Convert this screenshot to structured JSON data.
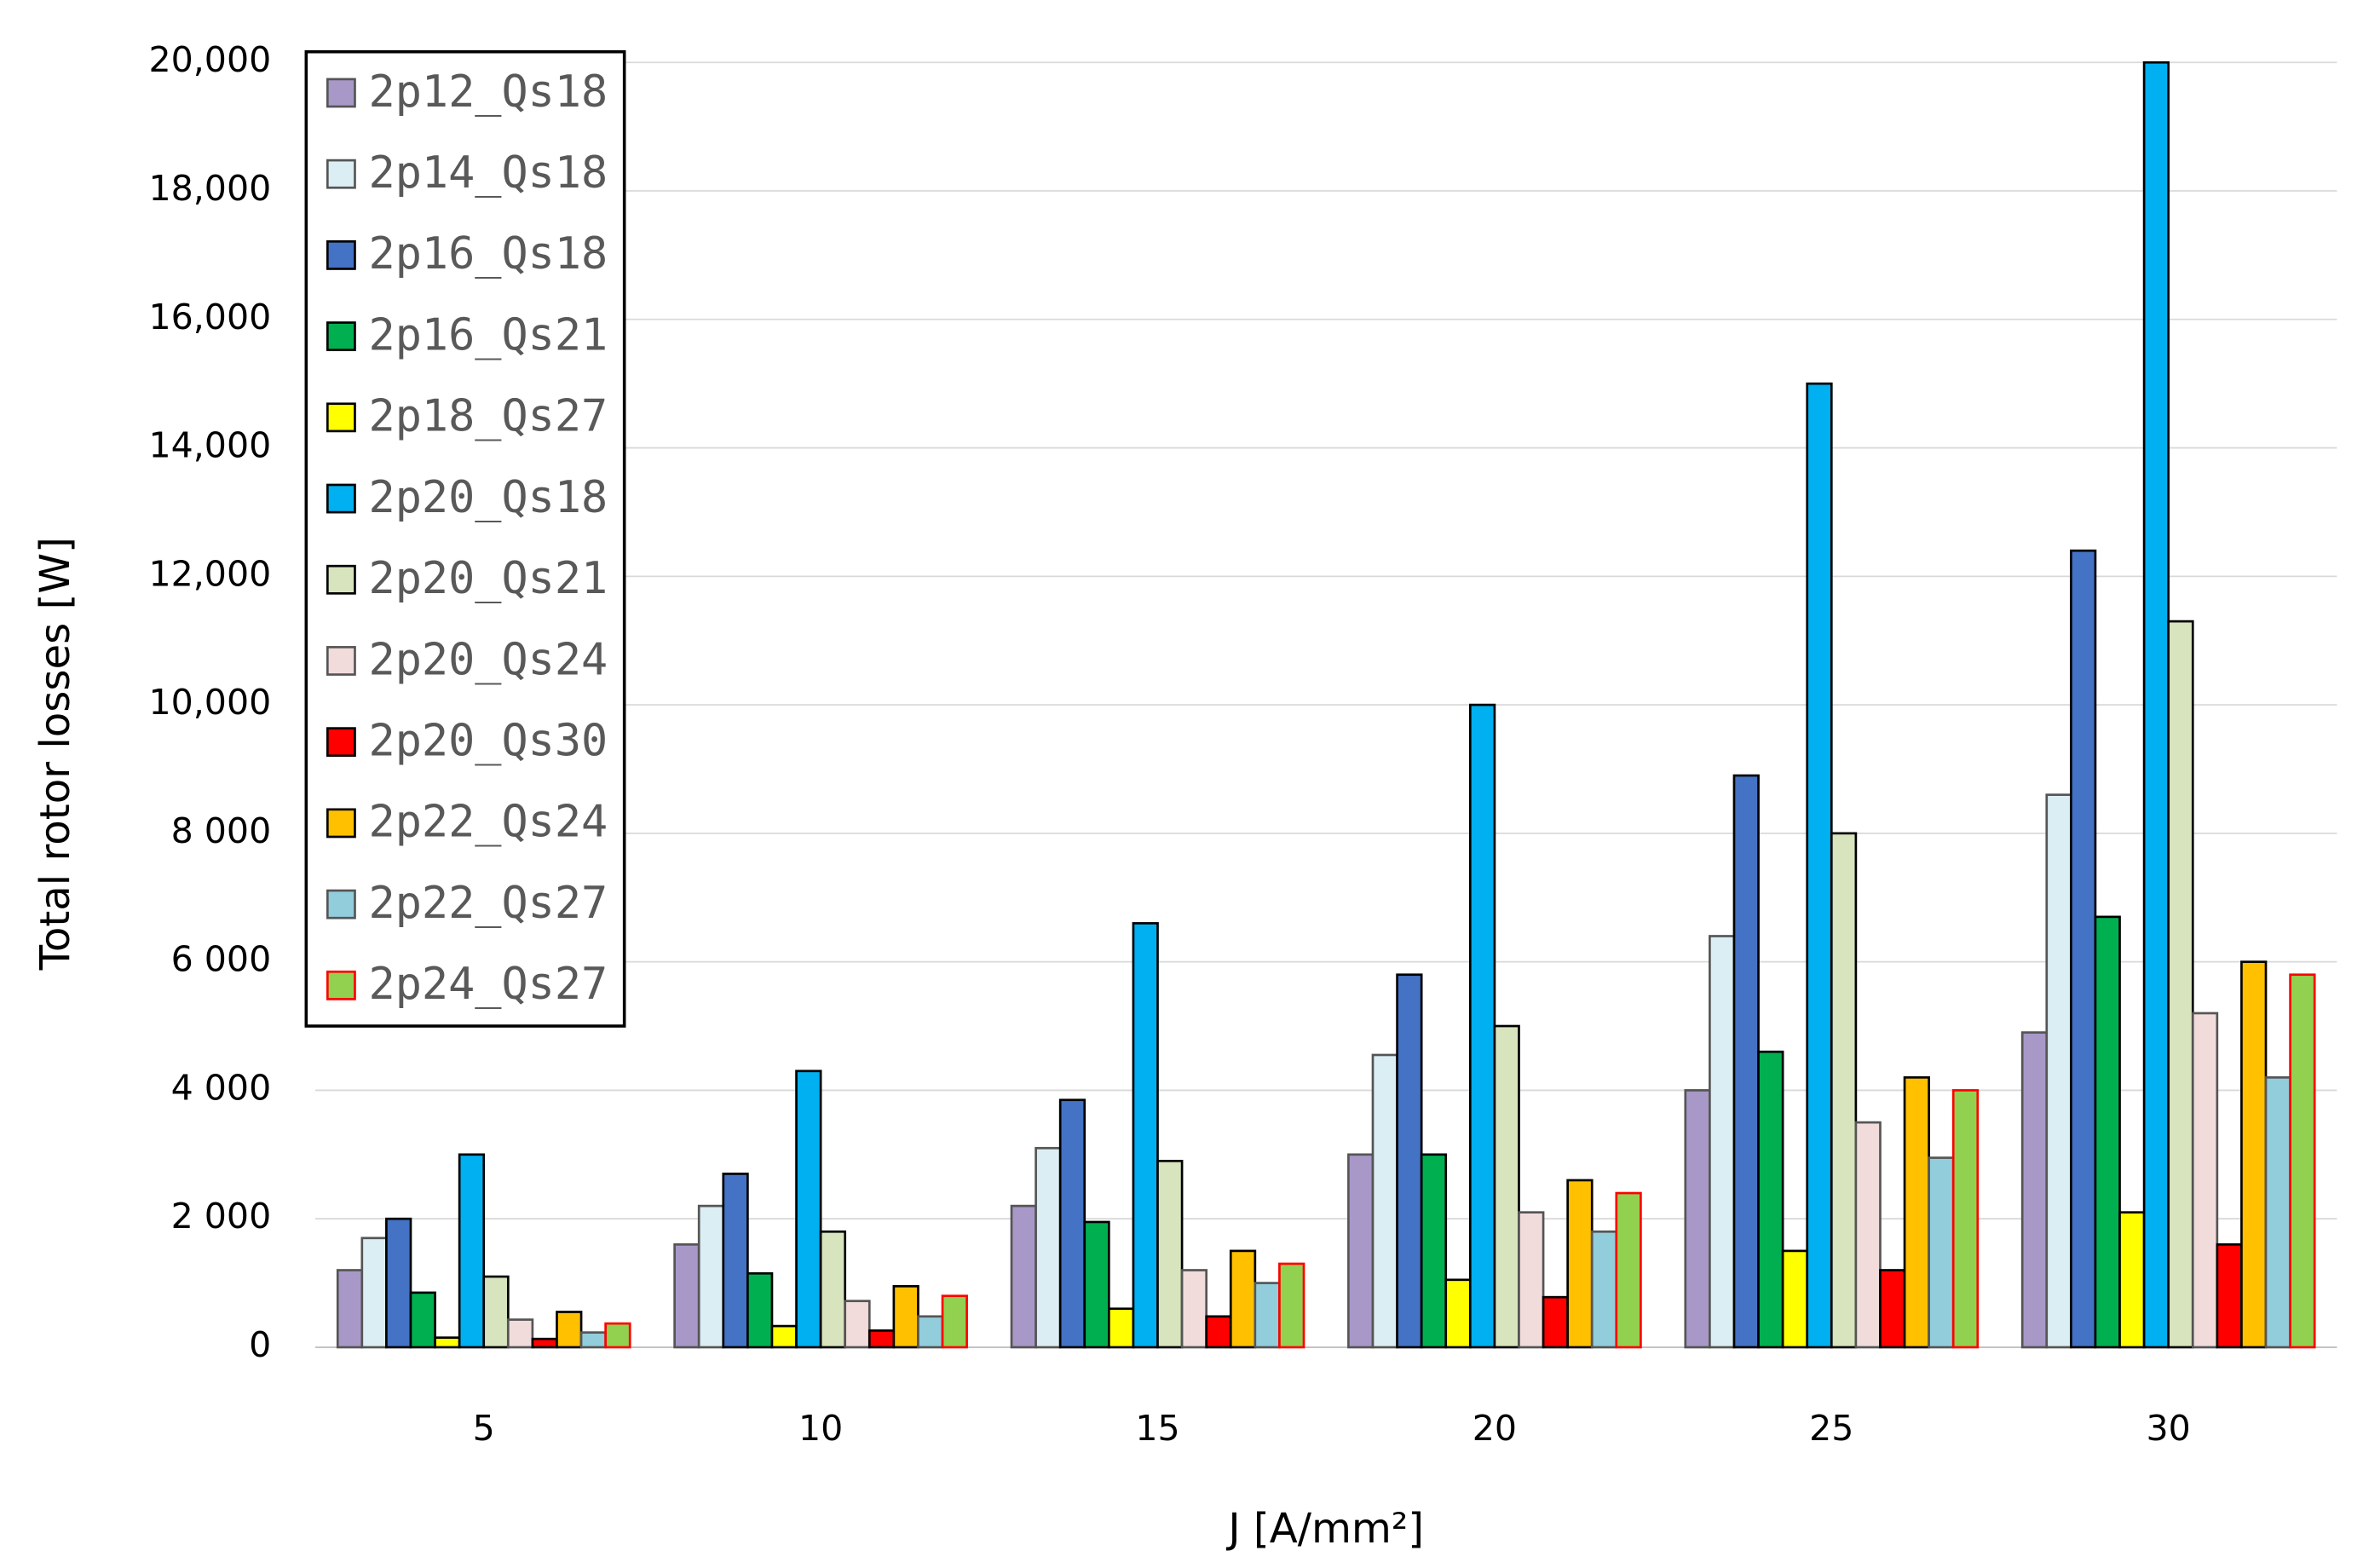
{
  "chart_data": {
    "type": "bar",
    "x_label": "J [A/mm²]",
    "y_label": "Total rotor losses  [W]",
    "categories": [
      "5",
      "10",
      "15",
      "20",
      "25",
      "30"
    ],
    "ylim": [
      0,
      20000
    ],
    "yticks": [
      0,
      {
        "value": 2000,
        "label": "2 000"
      },
      {
        "value": 4000,
        "label": "4 000"
      },
      {
        "value": 6000,
        "label": "6 000"
      },
      {
        "value": 8000,
        "label": "8 000"
      },
      {
        "value": 10000,
        "label": "10,000"
      },
      {
        "value": 12000,
        "label": "12,000"
      },
      {
        "value": 14000,
        "label": "14,000"
      },
      {
        "value": 16000,
        "label": "16,000"
      },
      {
        "value": 18000,
        "label": "18,000"
      },
      {
        "value": 20000,
        "label": "20,000"
      }
    ],
    "grid": true,
    "legend": "upper left",
    "series": [
      {
        "name": "2p12_Qs18",
        "color": "#a898c8",
        "edgecolor": "#555555",
        "values": [
          1200,
          1600,
          2200,
          3000,
          4000,
          4900
        ]
      },
      {
        "name": "2p14_Qs18",
        "color": "#dbeef4",
        "edgecolor": "#555555",
        "values": [
          1700,
          2200,
          3100,
          4550,
          6400,
          8600
        ]
      },
      {
        "name": "2p16_Qs18",
        "color": "#4472c4",
        "edgecolor": "#000000",
        "values": [
          2000,
          2700,
          3850,
          5800,
          8900,
          12400
        ]
      },
      {
        "name": "2p16_Qs21",
        "color": "#00b050",
        "edgecolor": "#000000",
        "values": [
          850,
          1150,
          1950,
          3000,
          4600,
          6700
        ]
      },
      {
        "name": "2p18_Qs27",
        "color": "#ffff00",
        "edgecolor": "#000000",
        "values": [
          150,
          330,
          600,
          1050,
          1500,
          2100
        ]
      },
      {
        "name": "2p20_Qs18",
        "color": "#00b0f0",
        "edgecolor": "#000000",
        "values": [
          3000,
          4300,
          6600,
          10000,
          15000,
          20000
        ]
      },
      {
        "name": "2p20_Qs21",
        "color": "#d7e4bd",
        "edgecolor": "#000000",
        "values": [
          1100,
          1800,
          2900,
          5000,
          8000,
          11300
        ]
      },
      {
        "name": "2p20_Qs24",
        "color": "#f2dcdb",
        "edgecolor": "#555555",
        "values": [
          430,
          720,
          1200,
          2100,
          3500,
          5200
        ]
      },
      {
        "name": "2p20_Qs30",
        "color": "#ff0000",
        "edgecolor": "#000000",
        "values": [
          130,
          260,
          480,
          780,
          1200,
          1600
        ]
      },
      {
        "name": "2p22_Qs24",
        "color": "#ffc000",
        "edgecolor": "#000000",
        "values": [
          550,
          950,
          1500,
          2600,
          4200,
          6000
        ]
      },
      {
        "name": "2p22_Qs27",
        "color": "#92cddc",
        "edgecolor": "#555555",
        "values": [
          230,
          480,
          1000,
          1800,
          2950,
          4200
        ]
      },
      {
        "name": "2p24_Qs27",
        "color": "#92d050",
        "edgecolor": "#ff0000",
        "values": [
          370,
          800,
          1300,
          2400,
          4000,
          5800
        ]
      }
    ]
  }
}
